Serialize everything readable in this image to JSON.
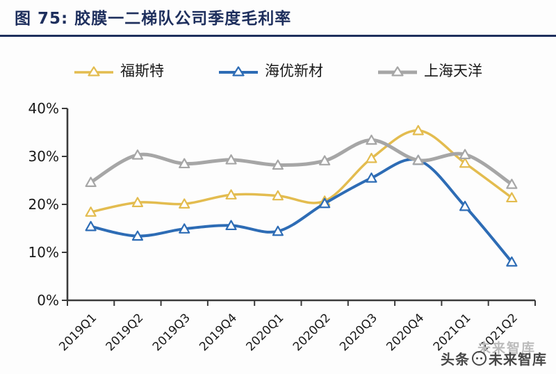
{
  "title": {
    "label": "图 75:  胶膜一二梯队公司季度毛利率"
  },
  "colors": {
    "title": "#1E2F5D",
    "title_rule": "#1E2F5D",
    "axis": "#3A3A3A",
    "tick_label": "#1A1A1A",
    "marker_fill": "#FFFFFF",
    "watermark_dark": "#474747",
    "watermark_light": "#BCBCBC",
    "background": "#FDFDFD"
  },
  "watermark": {
    "ghost": "未来智库",
    "prefix": "头条",
    "logo_icon": "circle-face-logo",
    "suffix": "未来智库"
  },
  "chart_data": {
    "type": "line",
    "title": "胶膜一二梯队公司季度毛利率",
    "xlabel": "",
    "ylabel": "",
    "categories": [
      "2019Q1",
      "2019Q2",
      "2019Q3",
      "2019Q4",
      "2020Q1",
      "2020Q2",
      "2020Q3",
      "2020Q4",
      "2021Q1",
      "2021Q2"
    ],
    "series": [
      {
        "name": "福斯特",
        "color": "#E3BC4F",
        "line_width": 3.5,
        "values": [
          18.4,
          20.4,
          20.1,
          22.0,
          21.8,
          20.7,
          29.6,
          35.4,
          28.6,
          21.4
        ]
      },
      {
        "name": "海优新材",
        "color": "#2D6CB5",
        "line_width": 4,
        "values": [
          15.4,
          13.4,
          14.9,
          15.6,
          14.4,
          20.2,
          25.5,
          29.2,
          19.6,
          8.0
        ]
      },
      {
        "name": "上海天洋",
        "color": "#A6A6A6",
        "line_width": 5,
        "values": [
          24.6,
          30.3,
          28.5,
          29.3,
          28.2,
          29.1,
          33.4,
          29.2,
          30.4,
          24.2
        ]
      }
    ],
    "ylim": [
      0,
      40
    ],
    "yticks": [
      0,
      10,
      20,
      30,
      40
    ],
    "ytick_format": "percent",
    "grid": false,
    "legend_position": "top",
    "marker": "triangle-open",
    "line_style": "smooth"
  }
}
